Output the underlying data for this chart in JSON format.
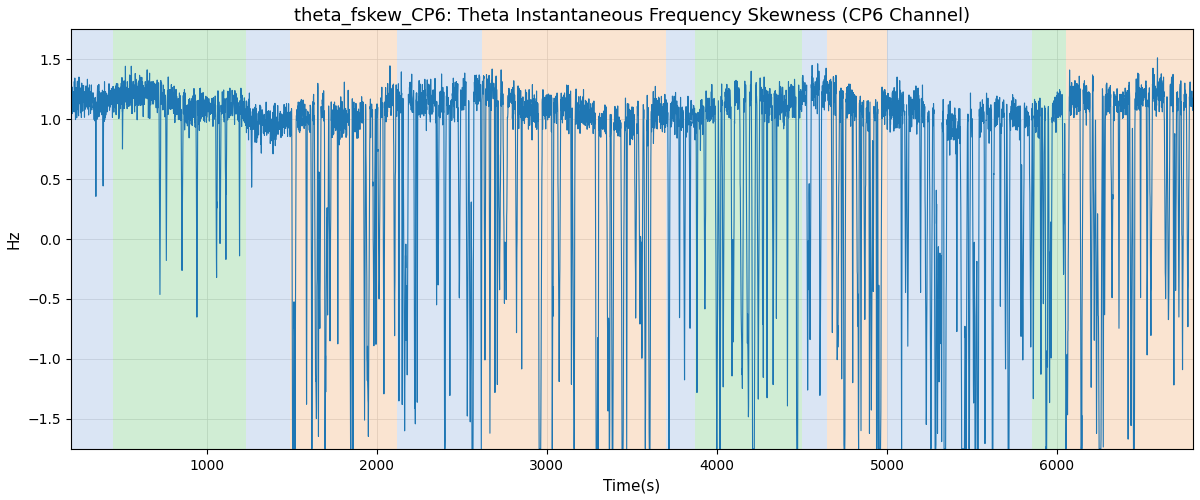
{
  "title": "theta_fskew_CP6: Theta Instantaneous Frequency Skewness (CP6 Channel)",
  "xlabel": "Time(s)",
  "ylabel": "Hz",
  "ylim": [
    -1.75,
    1.75
  ],
  "xlim": [
    200,
    6800
  ],
  "line_color": "#1f77b4",
  "line_width": 0.8,
  "title_fontsize": 13,
  "label_fontsize": 11,
  "bands": [
    {
      "start": 200,
      "end": 450,
      "color": "#aec6e8",
      "alpha": 0.45
    },
    {
      "start": 450,
      "end": 1230,
      "color": "#98d8a0",
      "alpha": 0.45
    },
    {
      "start": 1230,
      "end": 1490,
      "color": "#aec6e8",
      "alpha": 0.45
    },
    {
      "start": 1490,
      "end": 2120,
      "color": "#f5c49a",
      "alpha": 0.45
    },
    {
      "start": 2120,
      "end": 2540,
      "color": "#aec6e8",
      "alpha": 0.45
    },
    {
      "start": 2540,
      "end": 2620,
      "color": "#aec6e8",
      "alpha": 0.45
    },
    {
      "start": 2620,
      "end": 3700,
      "color": "#f5c49a",
      "alpha": 0.45
    },
    {
      "start": 3700,
      "end": 3870,
      "color": "#aec6e8",
      "alpha": 0.45
    },
    {
      "start": 3870,
      "end": 4500,
      "color": "#98d8a0",
      "alpha": 0.45
    },
    {
      "start": 4500,
      "end": 4650,
      "color": "#aec6e8",
      "alpha": 0.45
    },
    {
      "start": 4650,
      "end": 5000,
      "color": "#f5c49a",
      "alpha": 0.45
    },
    {
      "start": 5000,
      "end": 5850,
      "color": "#aec6e8",
      "alpha": 0.45
    },
    {
      "start": 5850,
      "end": 6050,
      "color": "#98d8a0",
      "alpha": 0.45
    },
    {
      "start": 6050,
      "end": 6800,
      "color": "#f5c49a",
      "alpha": 0.45
    }
  ],
  "seed": 7,
  "n_points": 6500,
  "t_start": 200,
  "t_end": 6800
}
